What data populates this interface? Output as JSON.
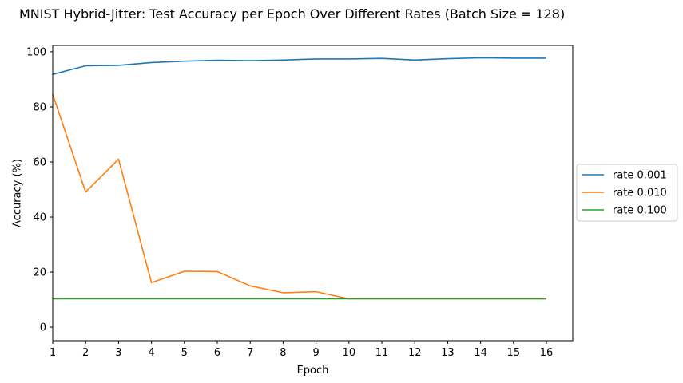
{
  "chart_data": {
    "type": "line",
    "title": "MNIST Hybrid-Jitter: Test Accuracy per Epoch Over Different Rates (Batch Size = 128)",
    "xlabel": "Epoch",
    "ylabel": "Accuracy (%)",
    "x": [
      1,
      2,
      3,
      4,
      5,
      6,
      7,
      8,
      9,
      10,
      11,
      12,
      13,
      14,
      15,
      16
    ],
    "xlim": [
      1,
      16.8
    ],
    "ylim": [
      -4.9,
      102.3
    ],
    "xticks": [
      "1",
      "2",
      "3",
      "4",
      "5",
      "6",
      "7",
      "8",
      "9",
      "10",
      "11",
      "12",
      "13",
      "14",
      "15",
      "16"
    ],
    "yticks": [
      0,
      20,
      40,
      60,
      80,
      100
    ],
    "grid": false,
    "legend_position": "center-right-outside",
    "series": [
      {
        "name": "rate 0.001",
        "color": "#1f77b4",
        "values": [
          91.8,
          94.9,
          95.1,
          96.1,
          96.6,
          96.9,
          96.8,
          97.0,
          97.4,
          97.4,
          97.6,
          97.0,
          97.5,
          97.8,
          97.7,
          97.7
        ]
      },
      {
        "name": "rate 0.010",
        "color": "#ff7f0e",
        "values": [
          84.6,
          49.1,
          61.0,
          16.2,
          20.3,
          20.2,
          15.0,
          12.5,
          12.9,
          10.3,
          10.3,
          10.3,
          10.3,
          10.3,
          10.3,
          10.3
        ]
      },
      {
        "name": "rate 0.100",
        "color": "#2ca02c",
        "values": [
          10.3,
          10.3,
          10.3,
          10.3,
          10.3,
          10.3,
          10.3,
          10.3,
          10.3,
          10.3,
          10.3,
          10.3,
          10.3,
          10.3,
          10.3,
          10.3
        ]
      }
    ]
  }
}
